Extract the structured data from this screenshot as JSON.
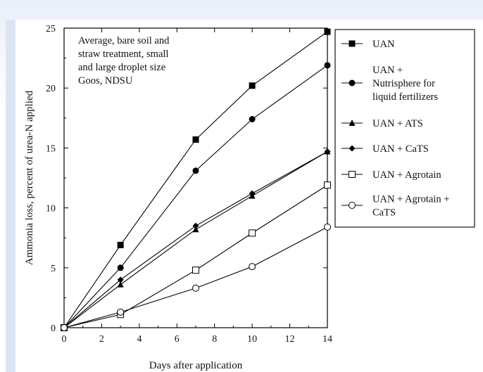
{
  "chart_data": {
    "type": "line",
    "xlabel": "Days after application",
    "ylabel": "Ammonia loss, percent of urea-N applied",
    "xlim": [
      0,
      14
    ],
    "ylim": [
      0,
      25
    ],
    "xticks": [
      "0",
      "2",
      "4",
      "6",
      "8",
      "10",
      "12",
      "14"
    ],
    "yticks": [
      "0",
      "5",
      "10",
      "15",
      "20",
      "25"
    ],
    "annotation": [
      "Average, bare soil and",
      "straw treatment, small",
      "and large droplet size",
      "Goos, NDSU"
    ],
    "legend_position": "right",
    "x": [
      0,
      3,
      7,
      10,
      14
    ],
    "series": [
      {
        "name": [
          "UAN"
        ],
        "marker": "square-filled",
        "values": [
          0,
          6.9,
          15.7,
          20.2,
          24.7
        ]
      },
      {
        "name": [
          "UAN +",
          "Nutrisphere for",
          "liquid fertilizers"
        ],
        "marker": "circle-filled",
        "values": [
          0,
          5.0,
          13.1,
          17.4,
          21.9
        ]
      },
      {
        "name": [
          "UAN + ATS"
        ],
        "marker": "triangle-filled",
        "values": [
          0,
          3.6,
          8.2,
          11.0,
          14.7
        ]
      },
      {
        "name": [
          "UAN + CaTS"
        ],
        "marker": "diamond-filled",
        "values": [
          0,
          4.0,
          8.5,
          11.2,
          14.7
        ]
      },
      {
        "name": [
          "UAN + Agrotain"
        ],
        "marker": "square-open",
        "values": [
          0,
          1.1,
          4.8,
          7.9,
          11.9
        ]
      },
      {
        "name": [
          "UAN + Agrotain +",
          "CaTS"
        ],
        "marker": "circle-open",
        "values": [
          0,
          1.3,
          3.3,
          5.1,
          8.4
        ]
      }
    ]
  }
}
